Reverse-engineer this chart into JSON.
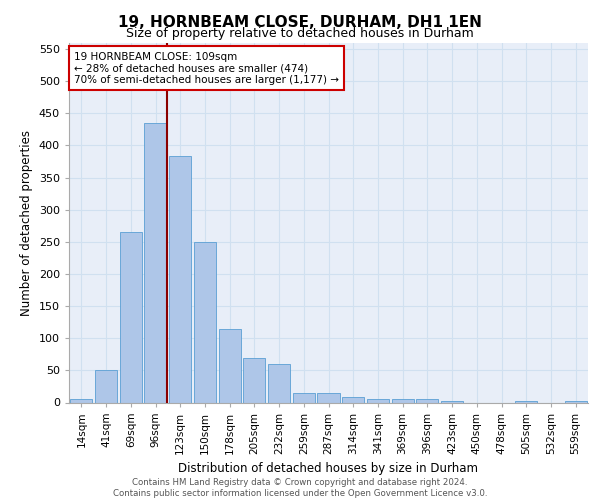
{
  "title1": "19, HORNBEAM CLOSE, DURHAM, DH1 1EN",
  "title2": "Size of property relative to detached houses in Durham",
  "xlabel": "Distribution of detached houses by size in Durham",
  "ylabel": "Number of detached properties",
  "categories": [
    "14sqm",
    "41sqm",
    "69sqm",
    "96sqm",
    "123sqm",
    "150sqm",
    "178sqm",
    "205sqm",
    "232sqm",
    "259sqm",
    "287sqm",
    "314sqm",
    "341sqm",
    "369sqm",
    "396sqm",
    "423sqm",
    "450sqm",
    "478sqm",
    "505sqm",
    "532sqm",
    "559sqm"
  ],
  "values": [
    5,
    50,
    265,
    435,
    383,
    250,
    115,
    70,
    60,
    15,
    15,
    8,
    5,
    5,
    5,
    2,
    0,
    0,
    2,
    0,
    2
  ],
  "bar_color": "#aec6e8",
  "bar_edge_color": "#5a9fd4",
  "grid_color": "#d0e0f0",
  "vline_color": "#8b0000",
  "annotation_text": "19 HORNBEAM CLOSE: 109sqm\n← 28% of detached houses are smaller (474)\n70% of semi-detached houses are larger (1,177) →",
  "annotation_box_color": "#ffffff",
  "annotation_box_edge": "#cc0000",
  "footer": "Contains HM Land Registry data © Crown copyright and database right 2024.\nContains public sector information licensed under the Open Government Licence v3.0.",
  "ylim": [
    0,
    560
  ],
  "yticks": [
    0,
    50,
    100,
    150,
    200,
    250,
    300,
    350,
    400,
    450,
    500,
    550
  ],
  "background_color": "#e8eef8"
}
